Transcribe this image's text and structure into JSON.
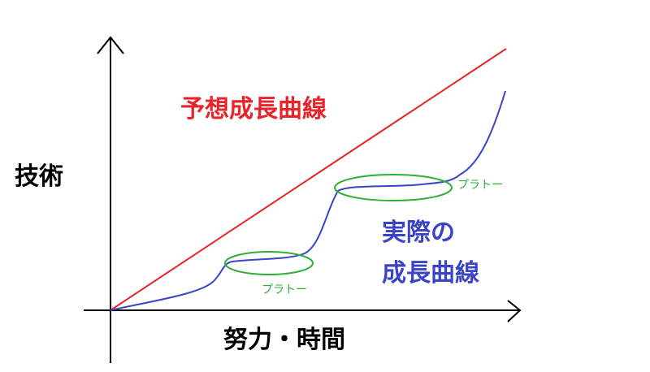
{
  "labels": {
    "y_axis": "技術",
    "x_axis": "努力・時間",
    "expected_curve": "予想成長曲線",
    "actual_curve_line1": "実際の",
    "actual_curve_line2": "成長曲線",
    "plateau_1": "プラトー",
    "plateau_2": "プラトー"
  },
  "colors": {
    "expected": "#e8242b",
    "actual": "#3a44c4",
    "plateau": "#2fae3a",
    "axis": "#000000"
  }
}
